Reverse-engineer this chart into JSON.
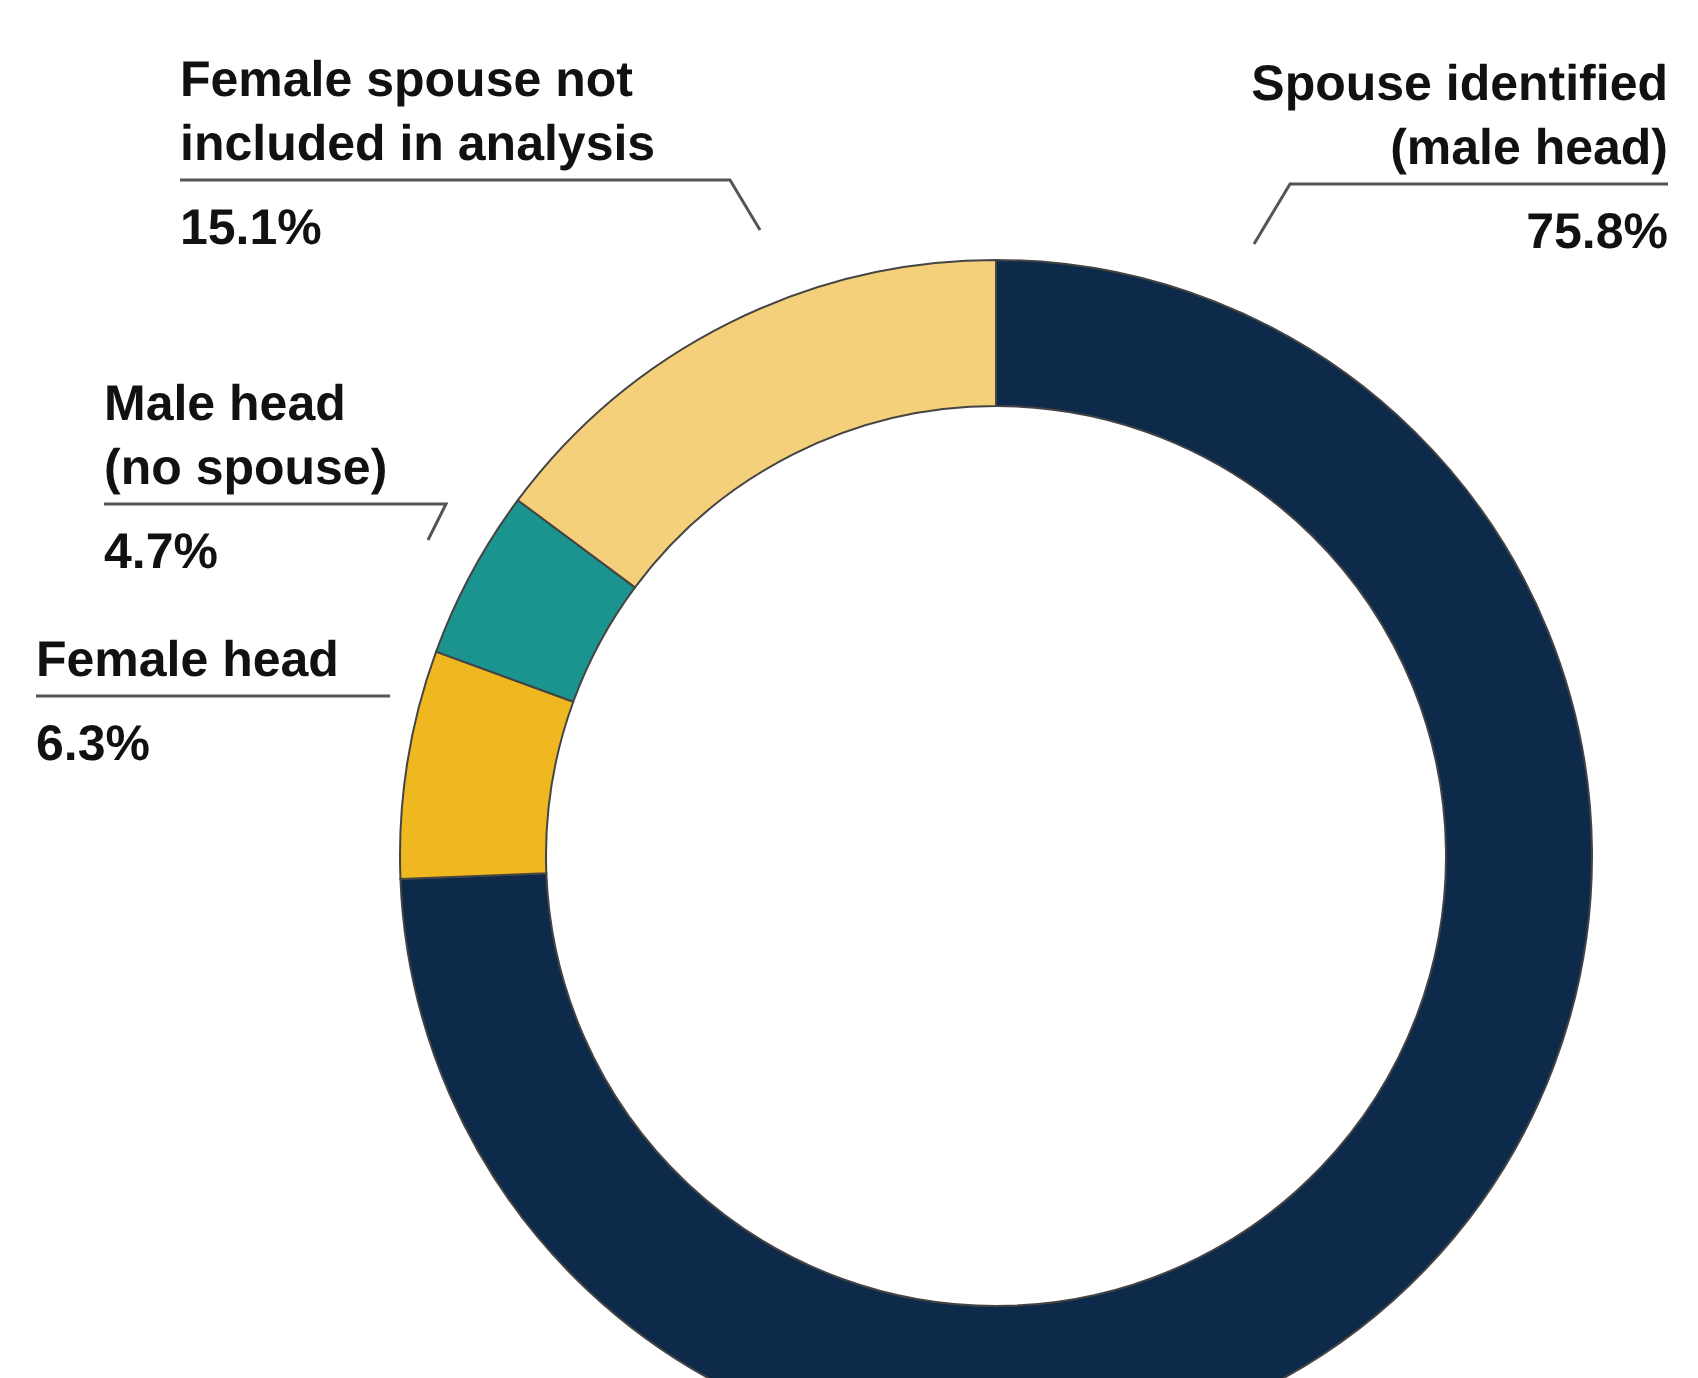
{
  "chart_data": {
    "type": "donut",
    "categories": [
      "Spouse identified\n(male head)",
      "Female head",
      "Male head\n(no spouse)",
      "Female spouse not\nincluded in analysis"
    ],
    "values": [
      75.8,
      6.3,
      4.7,
      15.1
    ],
    "value_labels": [
      "75.8%",
      "6.3%",
      "4.7%",
      "15.1%"
    ],
    "colors": [
      "#0d2a4a",
      "#f0b820",
      "#1b9490",
      "#f5d07a"
    ],
    "legend": false
  }
}
